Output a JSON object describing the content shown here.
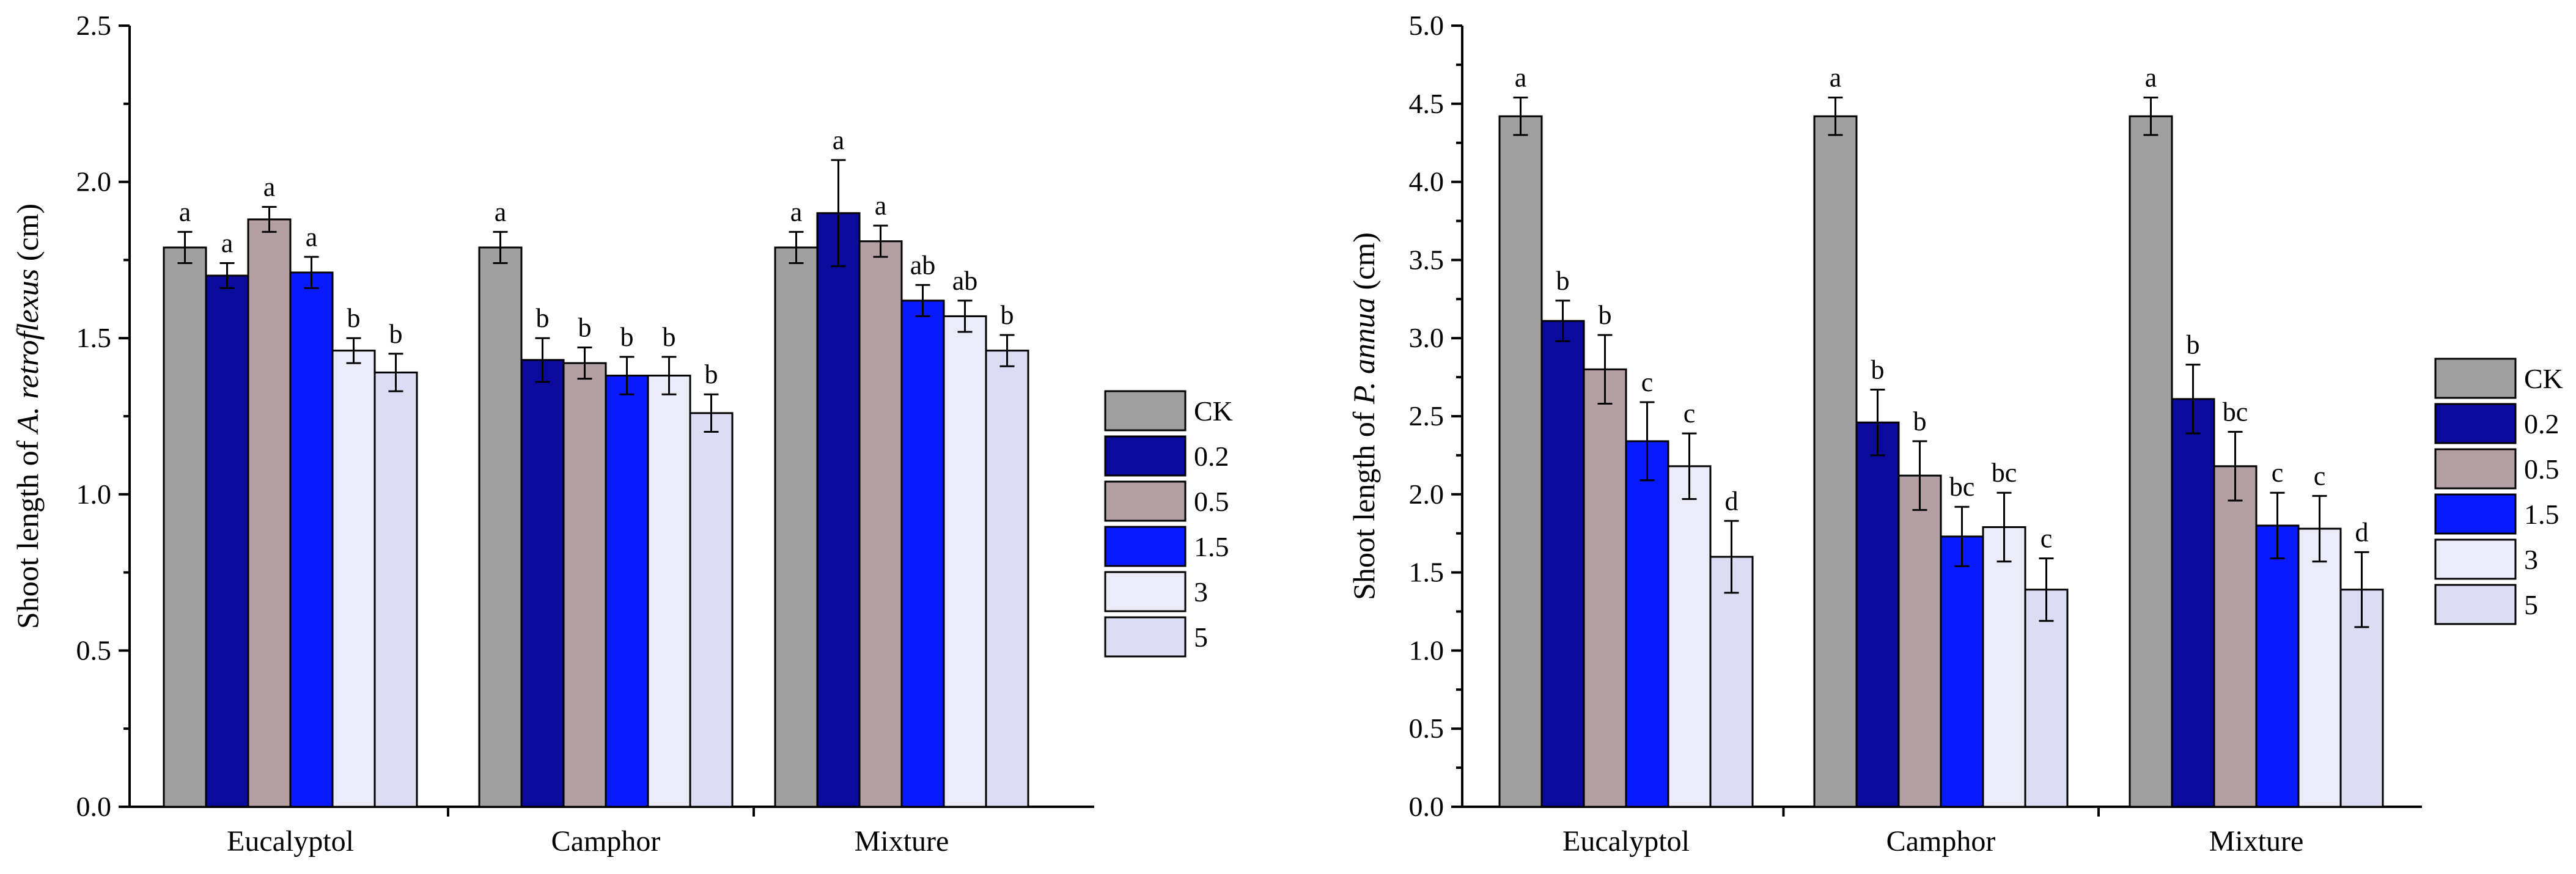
{
  "chart_data": [
    {
      "type": "bar",
      "id": "left",
      "ylabel_prefix": "Shoot length of ",
      "ylabel_species": "A. retroflexus",
      "ylabel_suffix": " (cm)",
      "ylim": [
        0,
        2.5
      ],
      "yticks": [
        "0.0",
        "0.5",
        "1.0",
        "1.5",
        "2.0",
        "2.5"
      ],
      "categories": [
        "Eucalyptol",
        "Camphor",
        "Mixture"
      ],
      "series": [
        {
          "name": "CK",
          "color": "#a0a0a0",
          "values": [
            1.79,
            1.79,
            1.79
          ],
          "errors": [
            0.05,
            0.05,
            0.05
          ],
          "letters": [
            "a",
            "a",
            "a"
          ]
        },
        {
          "name": "0.2",
          "color": "#0a0a9c",
          "values": [
            1.7,
            1.43,
            1.9
          ],
          "errors": [
            0.04,
            0.07,
            0.17
          ],
          "letters": [
            "a",
            "b",
            "a"
          ]
        },
        {
          "name": "0.5",
          "color": "#b4a0a4",
          "values": [
            1.88,
            1.42,
            1.81
          ],
          "errors": [
            0.04,
            0.05,
            0.05
          ],
          "letters": [
            "a",
            "b",
            "a"
          ]
        },
        {
          "name": "1.5",
          "color": "#0a1aff",
          "values": [
            1.71,
            1.38,
            1.62
          ],
          "errors": [
            0.05,
            0.06,
            0.05
          ],
          "letters": [
            "a",
            "b",
            "ab"
          ]
        },
        {
          "name": "3",
          "color": "#ececf8",
          "values": [
            1.46,
            1.38,
            1.57
          ],
          "errors": [
            0.04,
            0.06,
            0.05
          ],
          "letters": [
            "b",
            "b",
            "ab"
          ]
        },
        {
          "name": "5",
          "color": "#dcdcf4",
          "values": [
            1.39,
            1.26,
            1.46
          ],
          "errors": [
            0.06,
            0.06,
            0.05
          ],
          "letters": [
            "b",
            "b",
            "b"
          ]
        }
      ],
      "legend": [
        "CK",
        "0.2",
        "0.5",
        "1.5",
        "3",
        "5"
      ]
    },
    {
      "type": "bar",
      "id": "right",
      "ylabel_prefix": "Shoot length of ",
      "ylabel_species": "P. annua",
      "ylabel_suffix": " (cm)",
      "ylim": [
        0,
        5.0
      ],
      "yticks": [
        "0.0",
        "0.5",
        "1.0",
        "1.5",
        "2.0",
        "2.5",
        "3.0",
        "3.5",
        "4.0",
        "4.5",
        "5.0"
      ],
      "categories": [
        "Eucalyptol",
        "Camphor",
        "Mixture"
      ],
      "series": [
        {
          "name": "CK",
          "color": "#a0a0a0",
          "values": [
            4.42,
            4.42,
            4.42
          ],
          "errors": [
            0.12,
            0.12,
            0.12
          ],
          "letters": [
            "a",
            "a",
            "a"
          ]
        },
        {
          "name": "0.2",
          "color": "#0a0a9c",
          "values": [
            3.11,
            2.46,
            2.61
          ],
          "errors": [
            0.13,
            0.21,
            0.22
          ],
          "letters": [
            "b",
            "b",
            "b"
          ]
        },
        {
          "name": "0.5",
          "color": "#b4a0a4",
          "values": [
            2.8,
            2.12,
            2.18
          ],
          "errors": [
            0.22,
            0.22,
            0.22
          ],
          "letters": [
            "b",
            "b",
            "bc"
          ]
        },
        {
          "name": "1.5",
          "color": "#0a1aff",
          "values": [
            2.34,
            1.73,
            1.8
          ],
          "errors": [
            0.25,
            0.19,
            0.21
          ],
          "letters": [
            "c",
            "bc",
            "c"
          ]
        },
        {
          "name": "3",
          "color": "#ececf8",
          "values": [
            2.18,
            1.79,
            1.78
          ],
          "errors": [
            0.21,
            0.22,
            0.21
          ],
          "letters": [
            "c",
            "bc",
            "c"
          ]
        },
        {
          "name": "5",
          "color": "#dcdcf4",
          "values": [
            1.6,
            1.39,
            1.39
          ],
          "errors": [
            0.23,
            0.2,
            0.24
          ],
          "letters": [
            "d",
            "c",
            "d"
          ]
        }
      ],
      "legend": [
        "CK",
        "0.2",
        "0.5",
        "1.5",
        "3",
        "5"
      ]
    }
  ]
}
